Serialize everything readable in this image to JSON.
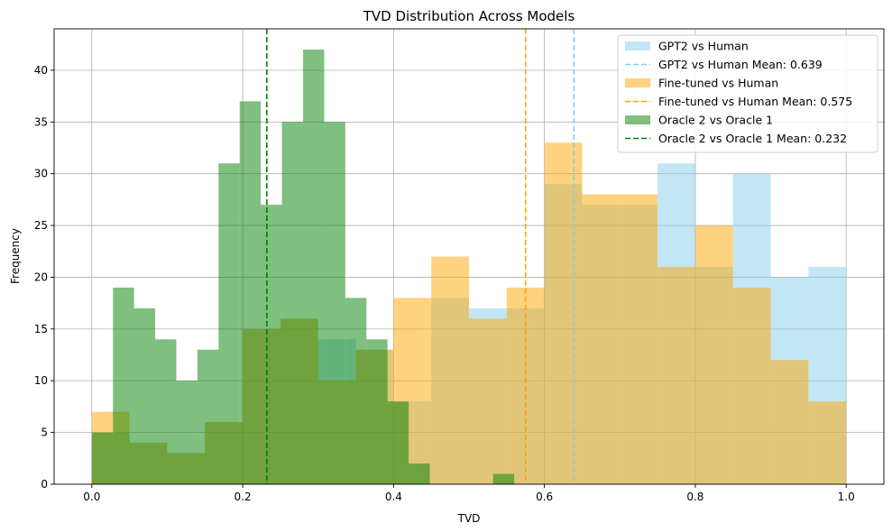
{
  "chart_data": {
    "type": "histogram",
    "title": "TVD Distribution Across Models",
    "xlabel": "TVD",
    "ylabel": "Frequency",
    "xlim": [
      -0.05,
      1.05
    ],
    "ylim": [
      0,
      44
    ],
    "xticks": [
      0.0,
      0.2,
      0.4,
      0.6,
      0.8,
      1.0
    ],
    "xtick_labels": [
      "0.0",
      "0.2",
      "0.4",
      "0.6",
      "0.8",
      "1.0"
    ],
    "yticks": [
      0,
      5,
      10,
      15,
      20,
      25,
      30,
      35,
      40
    ],
    "ytick_labels": [
      "0",
      "5",
      "10",
      "15",
      "20",
      "25",
      "30",
      "35",
      "40"
    ],
    "grid": true,
    "legend_position": "top-right",
    "bin_edges": [
      0.0,
      0.05,
      0.1,
      0.15,
      0.2,
      0.25,
      0.3,
      0.35,
      0.4,
      0.45,
      0.5,
      0.55,
      0.6,
      0.65,
      0.7,
      0.75,
      0.8,
      0.85,
      0.9,
      0.95,
      1.0
    ],
    "series": [
      {
        "name": "GPT2 vs Human",
        "color": "#87ceeb",
        "alpha": 0.5,
        "values": [
          5,
          4,
          3,
          6,
          15,
          16,
          14,
          13,
          8,
          18,
          17,
          17,
          29,
          27,
          27,
          31,
          21,
          30,
          20,
          21
        ],
        "mean": 0.639,
        "mean_label": "GPT2 vs Human Mean: 0.639",
        "mean_color": "#87ceeb"
      },
      {
        "name": "Fine-tuned vs Human",
        "color": "#ffa500",
        "alpha": 0.5,
        "values": [
          7,
          4,
          3,
          6,
          15,
          16,
          10,
          13,
          18,
          22,
          16,
          19,
          33,
          28,
          28,
          21,
          25,
          19,
          12,
          8
        ],
        "mean": 0.575,
        "mean_label": "Fine-tuned vs Human Mean: 0.575",
        "mean_color": "#ffa500"
      },
      {
        "name": "Oracle 2 vs Oracle 1",
        "color": "#008000",
        "alpha": 0.5,
        "bin_edges": [
          0.0,
          0.028,
          0.056,
          0.084,
          0.112,
          0.14,
          0.168,
          0.196,
          0.224,
          0.252,
          0.28,
          0.308,
          0.336,
          0.364,
          0.392,
          0.42,
          0.448,
          0.476,
          0.504,
          0.532,
          0.56
        ],
        "values": [
          5,
          19,
          17,
          14,
          10,
          13,
          31,
          37,
          27,
          35,
          42,
          35,
          18,
          14,
          8,
          2,
          0,
          0,
          0,
          1
        ],
        "mean": 0.232,
        "mean_label": "Oracle 2 vs Oracle 1 Mean: 0.232",
        "mean_color": "#008000"
      }
    ]
  }
}
